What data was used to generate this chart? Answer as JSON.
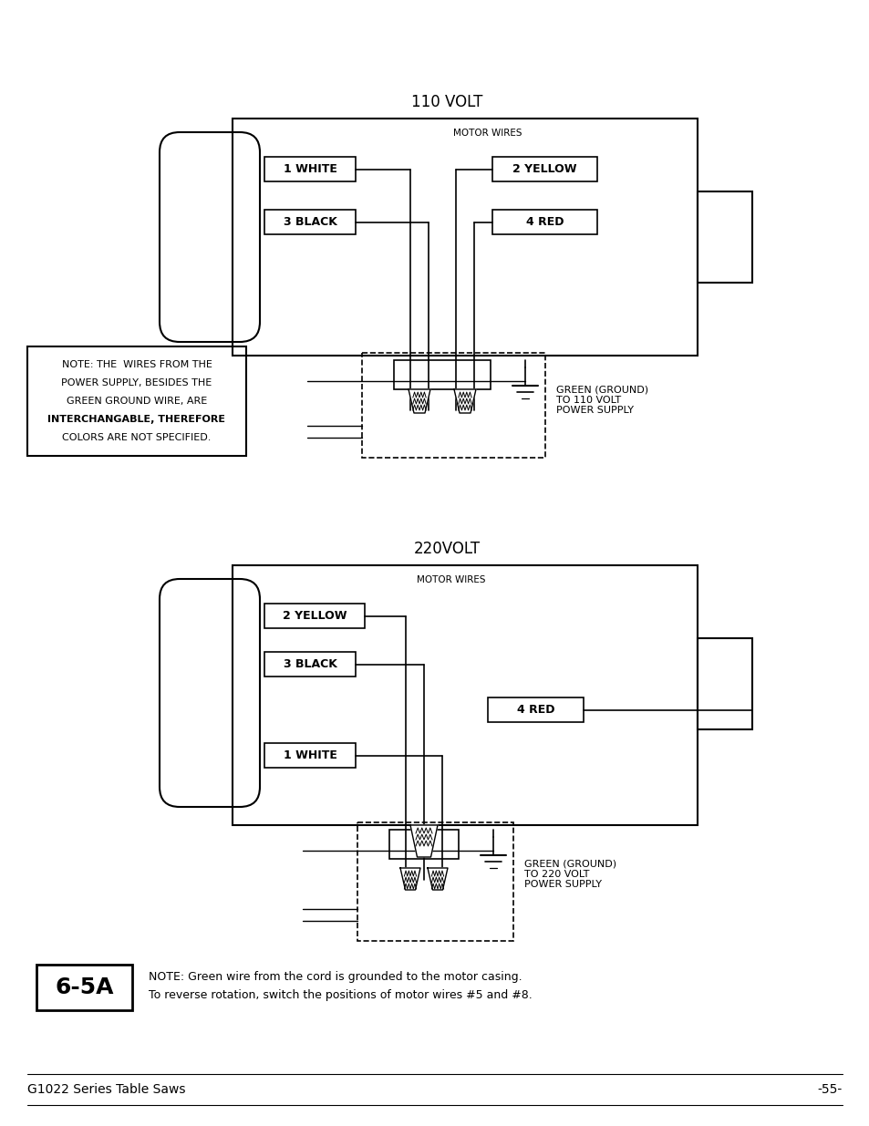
{
  "bg_color": "#ffffff",
  "line_color": "#000000",
  "title_110": "110 VOLT",
  "title_220": "220VOLT",
  "motor_wires_label": "MOTOR WIRES",
  "labels_110": [
    "1 WHITE",
    "3 BLACK",
    "2 YELLOW",
    "4 RED"
  ],
  "labels_220": [
    "2 YELLOW",
    "3 BLACK",
    "1 WHITE",
    "4 RED"
  ],
  "note_text_lines": [
    "NOTE: THE  WIRES FROM THE",
    "POWER SUPPLY, BESIDES THE",
    "GREEN GROUND WIRE, ARE",
    "INTERCHANGABLE, THEREFORE",
    "COLORS ARE NOT SPECIFIED."
  ],
  "note_bold_lines": [
    3
  ],
  "green_ground_110": "GREEN (GROUND)\nTO 110 VOLT\nPOWER SUPPLY",
  "green_ground_220": "GREEN (GROUND)\nTO 220 VOLT\nPOWER SUPPLY",
  "figure_label": "6-5A",
  "note_bottom_line1": "NOTE: Green wire from the cord is grounded to the motor casing.",
  "note_bottom_line2": "To reverse rotation, switch the positions of motor wires #5 and #8.",
  "footer_left": "G1022 Series Table Saws",
  "footer_right": "-55-"
}
